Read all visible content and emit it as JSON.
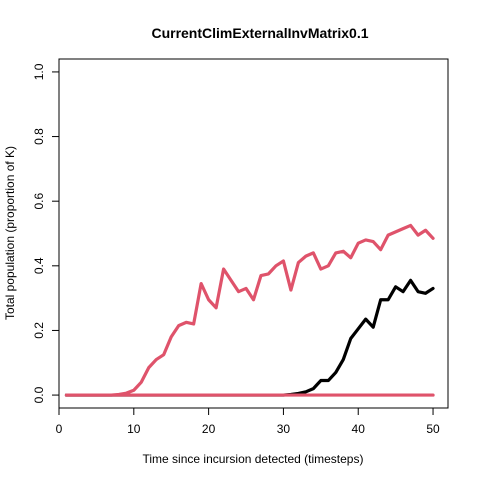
{
  "chart_data": {
    "type": "line",
    "title": "CurrentClimExternalInvMatrix0.1",
    "xlabel": "Time since incursion detected (timesteps)",
    "ylabel": "Total population (proportion of K)",
    "xlim": [
      0,
      52
    ],
    "ylim": [
      -0.04,
      1.04
    ],
    "xticks": [
      0,
      10,
      20,
      30,
      40,
      50
    ],
    "yticks": [
      0.0,
      0.2,
      0.4,
      0.6,
      0.8,
      1.0
    ],
    "xtick_labels": [
      "0",
      "10",
      "20",
      "30",
      "40",
      "50"
    ],
    "ytick_labels": [
      "0.0",
      "0.2",
      "0.4",
      "0.6",
      "0.8",
      "1.0"
    ],
    "grid": false,
    "series": [
      {
        "color": "#DF536B",
        "x": [
          1,
          2,
          3,
          4,
          5,
          6,
          7,
          8,
          9,
          10,
          11,
          12,
          13,
          14,
          15,
          16,
          17,
          18,
          19,
          20,
          21,
          22,
          23,
          24,
          25,
          26,
          27,
          28,
          29,
          30,
          31,
          32,
          33,
          34,
          35,
          36,
          37,
          38,
          39,
          40,
          41,
          42,
          43,
          44,
          45,
          46,
          47,
          48,
          49,
          50
        ],
        "y": [
          0,
          0,
          0,
          0,
          0,
          0,
          0,
          0.002,
          0.006,
          0.015,
          0.04,
          0.085,
          0.11,
          0.125,
          0.18,
          0.215,
          0.225,
          0.22,
          0.345,
          0.295,
          0.27,
          0.39,
          0.355,
          0.32,
          0.33,
          0.295,
          0.37,
          0.375,
          0.4,
          0.415,
          0.325,
          0.41,
          0.43,
          0.44,
          0.39,
          0.4,
          0.44,
          0.445,
          0.425,
          0.47,
          0.48,
          0.475,
          0.45,
          0.495,
          0.505,
          0.515,
          0.525,
          0.495,
          0.51,
          0.485
        ]
      },
      {
        "color": "#000000",
        "x": [
          1,
          2,
          3,
          4,
          5,
          6,
          7,
          8,
          9,
          10,
          11,
          12,
          13,
          14,
          15,
          16,
          17,
          18,
          19,
          20,
          21,
          22,
          23,
          24,
          25,
          26,
          27,
          28,
          29,
          30,
          31,
          32,
          33,
          34,
          35,
          36,
          37,
          38,
          39,
          40,
          41,
          42,
          43,
          44,
          45,
          46,
          47,
          48,
          49,
          50
        ],
        "y": [
          0,
          0,
          0,
          0,
          0,
          0,
          0,
          0,
          0,
          0,
          0,
          0,
          0,
          0,
          0,
          0,
          0,
          0,
          0,
          0,
          0,
          0,
          0,
          0,
          0,
          0,
          0,
          0,
          0,
          0,
          0.002,
          0.005,
          0.01,
          0.02,
          0.045,
          0.045,
          0.07,
          0.11,
          0.175,
          0.205,
          0.235,
          0.21,
          0.295,
          0.295,
          0.335,
          0.32,
          0.355,
          0.32,
          0.315,
          0.33
        ]
      },
      {
        "color": "#DF536B",
        "x": [
          1,
          2,
          3,
          4,
          5,
          6,
          7,
          8,
          9,
          10,
          11,
          12,
          13,
          14,
          15,
          16,
          17,
          18,
          19,
          20,
          21,
          22,
          23,
          24,
          25,
          26,
          27,
          28,
          29,
          30,
          31,
          32,
          33,
          34,
          35,
          36,
          37,
          38,
          39,
          40,
          41,
          42,
          43,
          44,
          45,
          46,
          47,
          48,
          49,
          50
        ],
        "y": [
          0,
          0,
          0,
          0,
          0,
          0,
          0,
          0,
          0,
          0,
          0,
          0,
          0,
          0,
          0,
          0,
          0,
          0,
          0,
          0,
          0,
          0,
          0,
          0,
          0,
          0,
          0,
          0,
          0,
          0,
          0,
          0,
          0,
          0,
          0,
          0,
          0,
          0,
          0,
          0,
          0,
          0,
          0,
          0,
          0,
          0,
          0,
          0,
          0,
          0
        ]
      }
    ]
  }
}
